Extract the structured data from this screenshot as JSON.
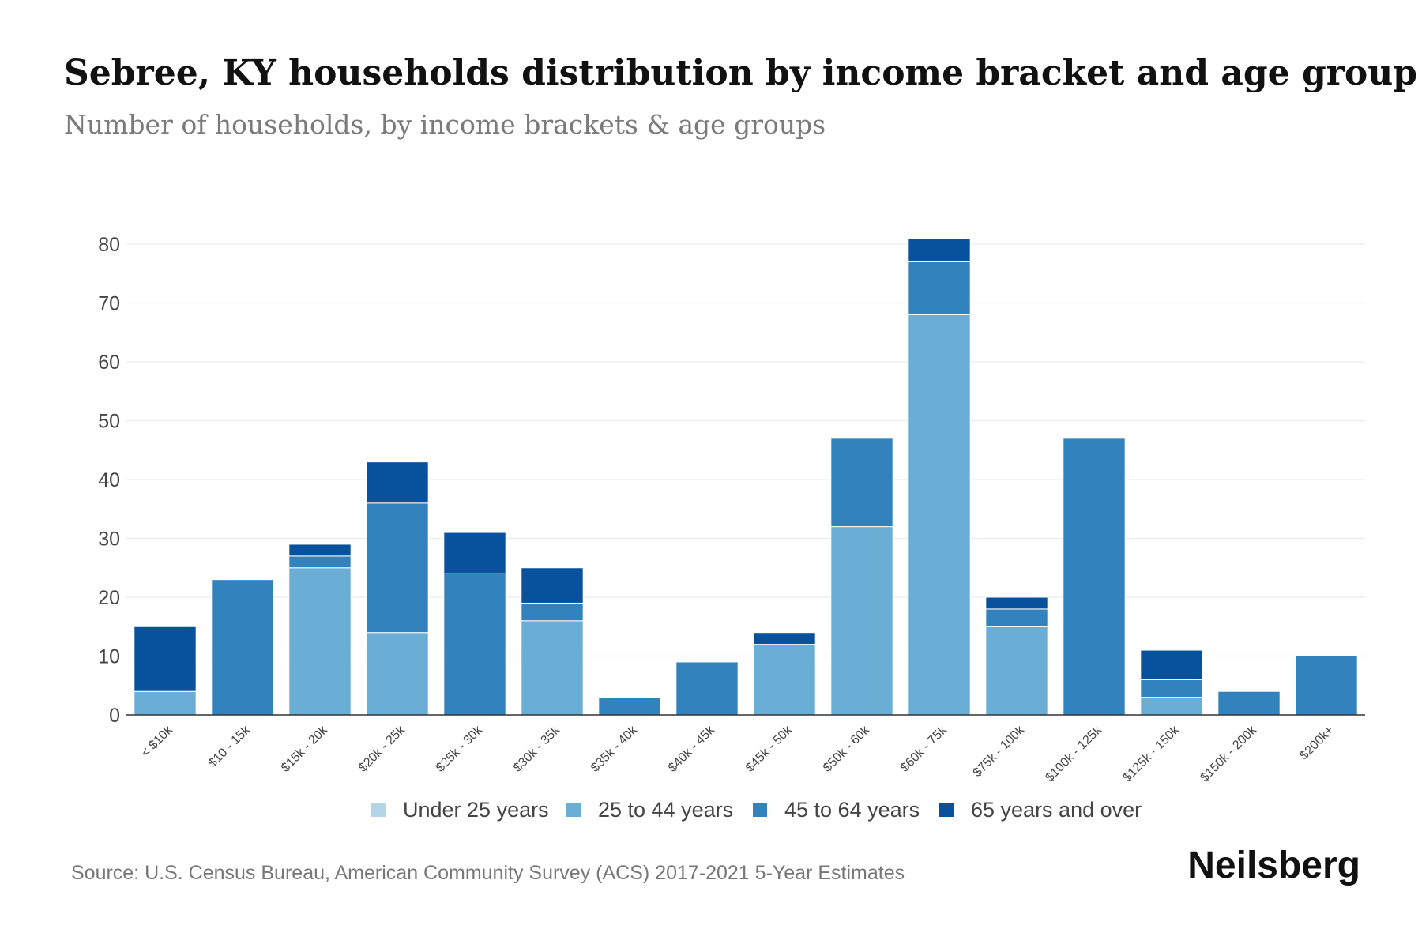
{
  "chart_data": {
    "type": "bar",
    "stacked": true,
    "title": "Sebree, KY households distribution by income bracket and age group",
    "subtitle": "Number of households, by income brackets & age groups",
    "xlabel": "",
    "ylabel": "",
    "ylim": [
      0,
      80
    ],
    "yticks": [
      0,
      10,
      20,
      30,
      40,
      50,
      60,
      70,
      80
    ],
    "grid": true,
    "legend_position": "bottom",
    "categories": [
      "< $10k",
      "$10 - 15k",
      "$15k - 20k",
      "$20k - 25k",
      "$25k - 30k",
      "$30k - 35k",
      "$35k - 40k",
      "$40k - 45k",
      "$45k - 50k",
      "$50k - 60k",
      "$60k - 75k",
      "$75k - 100k",
      "$100k - 125k",
      "$125k - 150k",
      "$150k - 200k",
      "$200k+"
    ],
    "series": [
      {
        "name": "Under 25 years",
        "color": "#b3d5e8",
        "values": [
          0,
          0,
          0,
          0,
          0,
          0,
          0,
          0,
          0,
          0,
          0,
          0,
          0,
          0,
          0,
          0
        ]
      },
      {
        "name": "25 to 44 years",
        "color": "#6aaed6",
        "values": [
          4,
          0,
          25,
          14,
          0,
          16,
          0,
          0,
          12,
          32,
          68,
          15,
          0,
          3,
          0,
          0
        ]
      },
      {
        "name": "45 to 64 years",
        "color": "#3282bd",
        "values": [
          0,
          23,
          2,
          22,
          24,
          3,
          3,
          9,
          0,
          15,
          9,
          3,
          47,
          3,
          4,
          10
        ]
      },
      {
        "name": "65 years and over",
        "color": "#08519c",
        "values": [
          11,
          0,
          2,
          7,
          7,
          6,
          0,
          0,
          2,
          0,
          4,
          2,
          0,
          5,
          0,
          0
        ]
      }
    ]
  },
  "footer": {
    "source": "Source: U.S. Census Bureau, American Community Survey (ACS) 2017-2021 5-Year Estimates",
    "brand": "Neilsberg"
  },
  "colors": {
    "title": "#111111",
    "subtitle": "#7a7a7a",
    "axis_text": "#444444",
    "grid": "#ececec",
    "axis_line": "#333333"
  }
}
